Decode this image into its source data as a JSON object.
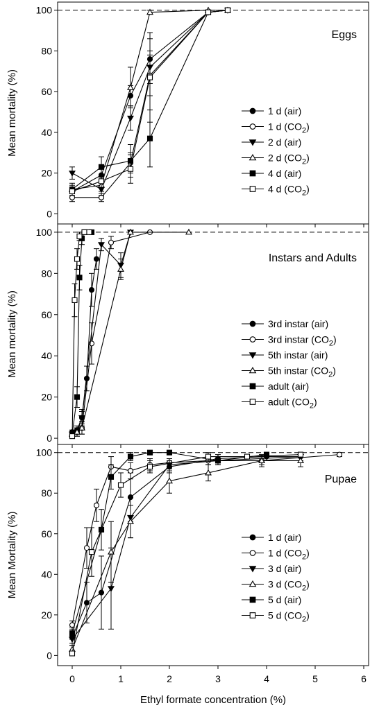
{
  "figure": {
    "xlabel": "Ethyl formate concentration (%)",
    "x_ticks": [
      "0",
      "1",
      "2",
      "3",
      "4",
      "5",
      "6"
    ],
    "xlim": [
      -0.3,
      6.1
    ]
  },
  "chart_data": [
    {
      "type": "line",
      "title": "Eggs",
      "ylabel": "Mean mortality (%)",
      "ylim": [
        -5,
        104
      ],
      "y_ticks": [
        "0",
        "20",
        "40",
        "60",
        "80",
        "100"
      ],
      "reference_line": 100,
      "legend_position": "right",
      "series": [
        {
          "name": "1 d (air)",
          "sub": "",
          "suffix": "",
          "marker": "circle",
          "filled": true,
          "x": [
            0,
            0.6,
            1.2,
            1.6,
            2.8,
            3.2
          ],
          "y": [
            11,
            19,
            58,
            76,
            99,
            100
          ],
          "err": [
            2,
            3,
            5,
            10,
            1,
            0
          ]
        },
        {
          "name": "1 d (CO",
          "sub": "2",
          "suffix": ")",
          "marker": "circle",
          "filled": false,
          "x": [
            0,
            0.6,
            1.2,
            1.6,
            2.8,
            3.2
          ],
          "y": [
            8,
            8,
            25,
            68,
            99,
            100
          ],
          "err": [
            2,
            2,
            5,
            10,
            1,
            0
          ]
        },
        {
          "name": "2 d (air)",
          "sub": "",
          "suffix": "",
          "marker": "triangle-down",
          "filled": true,
          "x": [
            0,
            0.6,
            1.2,
            1.6,
            2.8,
            3.2
          ],
          "y": [
            20,
            12,
            47,
            72,
            99,
            100
          ],
          "err": [
            3,
            3,
            6,
            8,
            1,
            0
          ]
        },
        {
          "name": "2 d (CO",
          "sub": "2",
          "suffix": ")",
          "marker": "triangle-up",
          "filled": false,
          "x": [
            0,
            0.6,
            1.2,
            1.6,
            2.8,
            3.2
          ],
          "y": [
            12,
            14,
            62,
            99,
            100,
            100
          ],
          "err": [
            3,
            3,
            10,
            1,
            0,
            0
          ]
        },
        {
          "name": "4 d (air)",
          "sub": "",
          "suffix": "",
          "marker": "square",
          "filled": true,
          "x": [
            0,
            0.6,
            1.2,
            1.6,
            2.8,
            3.2
          ],
          "y": [
            12,
            23,
            26,
            37,
            99,
            100
          ],
          "err": [
            2,
            5,
            8,
            14,
            1,
            0
          ]
        },
        {
          "name": "4 d (CO",
          "sub": "2",
          "suffix": ")",
          "marker": "square",
          "filled": false,
          "x": [
            0,
            0.6,
            1.2,
            1.6,
            2.8,
            3.2
          ],
          "y": [
            11,
            16,
            22,
            67,
            99,
            100
          ],
          "err": [
            2,
            3,
            7,
            22,
            1,
            0
          ]
        }
      ]
    },
    {
      "type": "line",
      "title": "Instars and Adults",
      "ylabel": "Mean mortality (%)",
      "ylim": [
        -3,
        104
      ],
      "y_ticks": [
        "0",
        "20",
        "40",
        "60",
        "80",
        "100"
      ],
      "reference_line": 100,
      "legend_position": "right",
      "series": [
        {
          "name": "3rd instar (air)",
          "sub": "",
          "suffix": "",
          "marker": "circle",
          "filled": true,
          "x": [
            0,
            0.1,
            0.2,
            0.3,
            0.4,
            0.5
          ],
          "y": [
            3,
            4,
            10,
            29,
            72,
            87
          ],
          "err": [
            1,
            2,
            3,
            6,
            8,
            5
          ]
        },
        {
          "name": "3rd instar (CO",
          "sub": "2",
          "suffix": ")",
          "marker": "circle",
          "filled": false,
          "x": [
            0,
            0.1,
            0.2,
            0.4,
            0.8,
            1.6
          ],
          "y": [
            2,
            3,
            5,
            46,
            95,
            100
          ],
          "err": [
            1,
            2,
            3,
            10,
            3,
            0
          ]
        },
        {
          "name": "5th instar (air)",
          "sub": "",
          "suffix": "",
          "marker": "triangle-down",
          "filled": true,
          "x": [
            0,
            0.1,
            0.2,
            0.6,
            1.0,
            1.2
          ],
          "y": [
            2,
            3,
            10,
            94,
            84,
            100
          ],
          "err": [
            1,
            2,
            4,
            3,
            6,
            0
          ]
        },
        {
          "name": "5th instar (CO",
          "sub": "2",
          "suffix": ")",
          "marker": "triangle-up",
          "filled": false,
          "x": [
            0,
            0.1,
            0.2,
            1.0,
            1.2,
            2.4
          ],
          "y": [
            2,
            3,
            5,
            82,
            100,
            100
          ],
          "err": [
            1,
            2,
            3,
            5,
            0,
            0
          ]
        },
        {
          "name": "adult (air)",
          "sub": "",
          "suffix": "",
          "marker": "square",
          "filled": true,
          "x": [
            0,
            0.1,
            0.15,
            0.2,
            0.25,
            0.4
          ],
          "y": [
            2,
            20,
            78,
            97,
            100,
            100
          ],
          "err": [
            1,
            5,
            6,
            3,
            0,
            0
          ]
        },
        {
          "name": "adult (CO",
          "sub": "2",
          "suffix": ")",
          "marker": "square",
          "filled": false,
          "x": [
            0,
            0.05,
            0.1,
            0.15,
            0.25,
            0.35
          ],
          "y": [
            1,
            67,
            87,
            98,
            100,
            100
          ],
          "err": [
            1,
            8,
            5,
            2,
            0,
            0
          ]
        }
      ]
    },
    {
      "type": "line",
      "title": "Pupae",
      "ylabel": "Mean Mortality (%)",
      "ylim": [
        -5,
        104
      ],
      "y_ticks": [
        "0",
        "20",
        "40",
        "60",
        "80",
        "100"
      ],
      "reference_line": 100,
      "legend_position": "right",
      "series": [
        {
          "name": "1 d (air)",
          "sub": "",
          "suffix": "",
          "marker": "circle",
          "filled": true,
          "x": [
            0,
            0.3,
            0.6,
            1.2,
            2.0,
            3.0,
            4.0,
            4.7
          ],
          "y": [
            9,
            26,
            31,
            78,
            93,
            97,
            98,
            98
          ],
          "err": [
            3,
            10,
            18,
            12,
            3,
            2,
            2,
            2
          ]
        },
        {
          "name": "1 d (CO",
          "sub": "2",
          "suffix": ")",
          "marker": "circle",
          "filled": false,
          "x": [
            0,
            0.3,
            0.5,
            0.8,
            1.2,
            1.6,
            2.0,
            2.8,
            3.9,
            5.5
          ],
          "y": [
            15,
            53,
            74,
            93,
            91,
            94,
            95,
            96,
            96,
            99
          ],
          "err": [
            2,
            10,
            8,
            5,
            4,
            3,
            2,
            2,
            2,
            1
          ]
        },
        {
          "name": "3 d (air)",
          "sub": "",
          "suffix": "",
          "marker": "triangle-down",
          "filled": true,
          "x": [
            0,
            0.8,
            1.2,
            2.0,
            3.0,
            4.7
          ],
          "y": [
            8,
            33,
            68,
            94,
            96,
            98
          ],
          "err": [
            3,
            20,
            10,
            3,
            2,
            2
          ]
        },
        {
          "name": "3 d (CO",
          "sub": "2",
          "suffix": ")",
          "marker": "triangle-up",
          "filled": false,
          "x": [
            0,
            0.8,
            1.2,
            2.0,
            2.8,
            3.9,
            4.7
          ],
          "y": [
            3,
            51,
            66,
            86,
            90,
            96,
            96
          ],
          "err": [
            2,
            15,
            8,
            6,
            4,
            3,
            3
          ]
        },
        {
          "name": "5 d (air)",
          "sub": "",
          "suffix": "",
          "marker": "square",
          "filled": true,
          "x": [
            0,
            0.6,
            0.8,
            1.2,
            1.6,
            2.0,
            3.0,
            4.0
          ],
          "y": [
            11,
            62,
            88,
            98,
            100,
            100,
            96,
            99
          ],
          "err": [
            3,
            10,
            6,
            2,
            0,
            0,
            2,
            1
          ]
        },
        {
          "name": "5 d (CO",
          "sub": "2",
          "suffix": ")",
          "marker": "square",
          "filled": false,
          "x": [
            0,
            0.4,
            1.0,
            1.6,
            2.8,
            3.6,
            4.7
          ],
          "y": [
            1,
            51,
            84,
            93,
            98,
            98,
            99
          ],
          "err": [
            1,
            12,
            6,
            3,
            2,
            1,
            1
          ]
        }
      ]
    }
  ]
}
